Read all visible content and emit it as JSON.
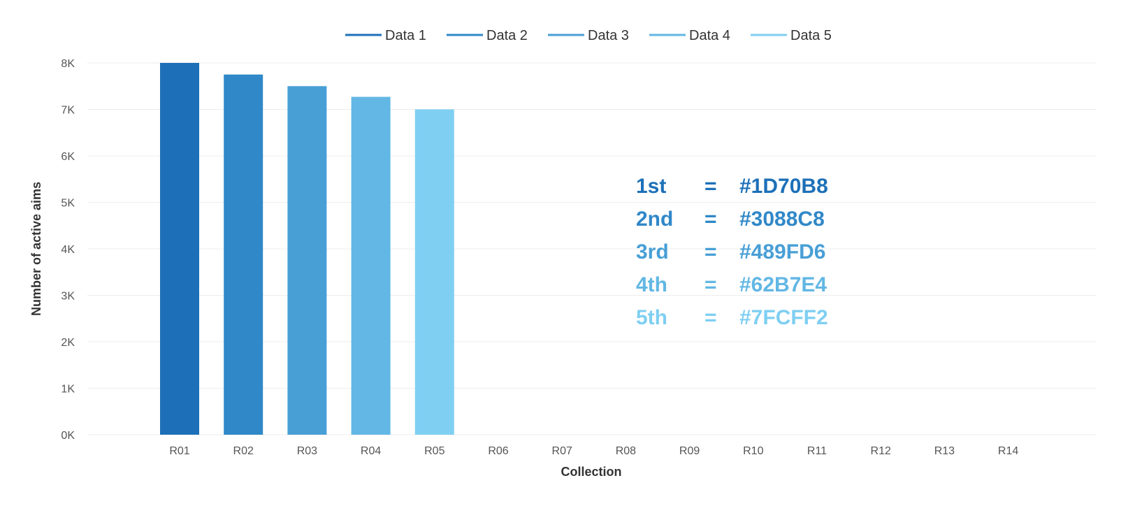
{
  "chart_data": {
    "type": "bar",
    "xlabel": "Collection",
    "ylabel": "Number of active aims",
    "ylim": [
      0,
      8000
    ],
    "yticks": [
      0,
      1000,
      2000,
      3000,
      4000,
      5000,
      6000,
      7000,
      8000
    ],
    "ytick_labels": [
      "0K",
      "1K",
      "2K",
      "3K",
      "4K",
      "5K",
      "6K",
      "7K",
      "8K"
    ],
    "categories": [
      "R01",
      "R02",
      "R03",
      "R04",
      "R05",
      "R06",
      "R07",
      "R08",
      "R09",
      "R10",
      "R11",
      "R12",
      "R13",
      "R14"
    ],
    "series": [
      {
        "name": "Data 1",
        "color": "#1D70B8",
        "values": [
          8000,
          0,
          0,
          0,
          0,
          0,
          0,
          0,
          0,
          0,
          0,
          0,
          0,
          0
        ]
      },
      {
        "name": "Data 2",
        "color": "#3088C8",
        "values": [
          0,
          7750,
          0,
          0,
          0,
          0,
          0,
          0,
          0,
          0,
          0,
          0,
          0,
          0
        ]
      },
      {
        "name": "Data 3",
        "color": "#489FD6",
        "values": [
          0,
          0,
          7500,
          0,
          0,
          0,
          0,
          0,
          0,
          0,
          0,
          0,
          0,
          0
        ]
      },
      {
        "name": "Data 4",
        "color": "#62B7E4",
        "values": [
          0,
          0,
          0,
          7270,
          0,
          0,
          0,
          0,
          0,
          0,
          0,
          0,
          0,
          0
        ]
      },
      {
        "name": "Data 5",
        "color": "#7FCFF2",
        "values": [
          0,
          0,
          0,
          0,
          7000,
          0,
          0,
          0,
          0,
          0,
          0,
          0,
          0,
          0
        ]
      }
    ],
    "legend_position": "top",
    "grid": true,
    "annotations": [
      {
        "rank": "1st",
        "eq": "=",
        "code": "#1D70B8",
        "color": "#1D70B8"
      },
      {
        "rank": "2nd",
        "eq": "=",
        "code": "#3088C8",
        "color": "#3088C8"
      },
      {
        "rank": "3rd",
        "eq": "=",
        "code": "#489FD6",
        "color": "#489FD6"
      },
      {
        "rank": "4th",
        "eq": "=",
        "code": "#62B7E4",
        "color": "#62B7E4"
      },
      {
        "rank": "5th",
        "eq": "=",
        "code": "#7FCFF2",
        "color": "#7FCFF2"
      }
    ]
  }
}
